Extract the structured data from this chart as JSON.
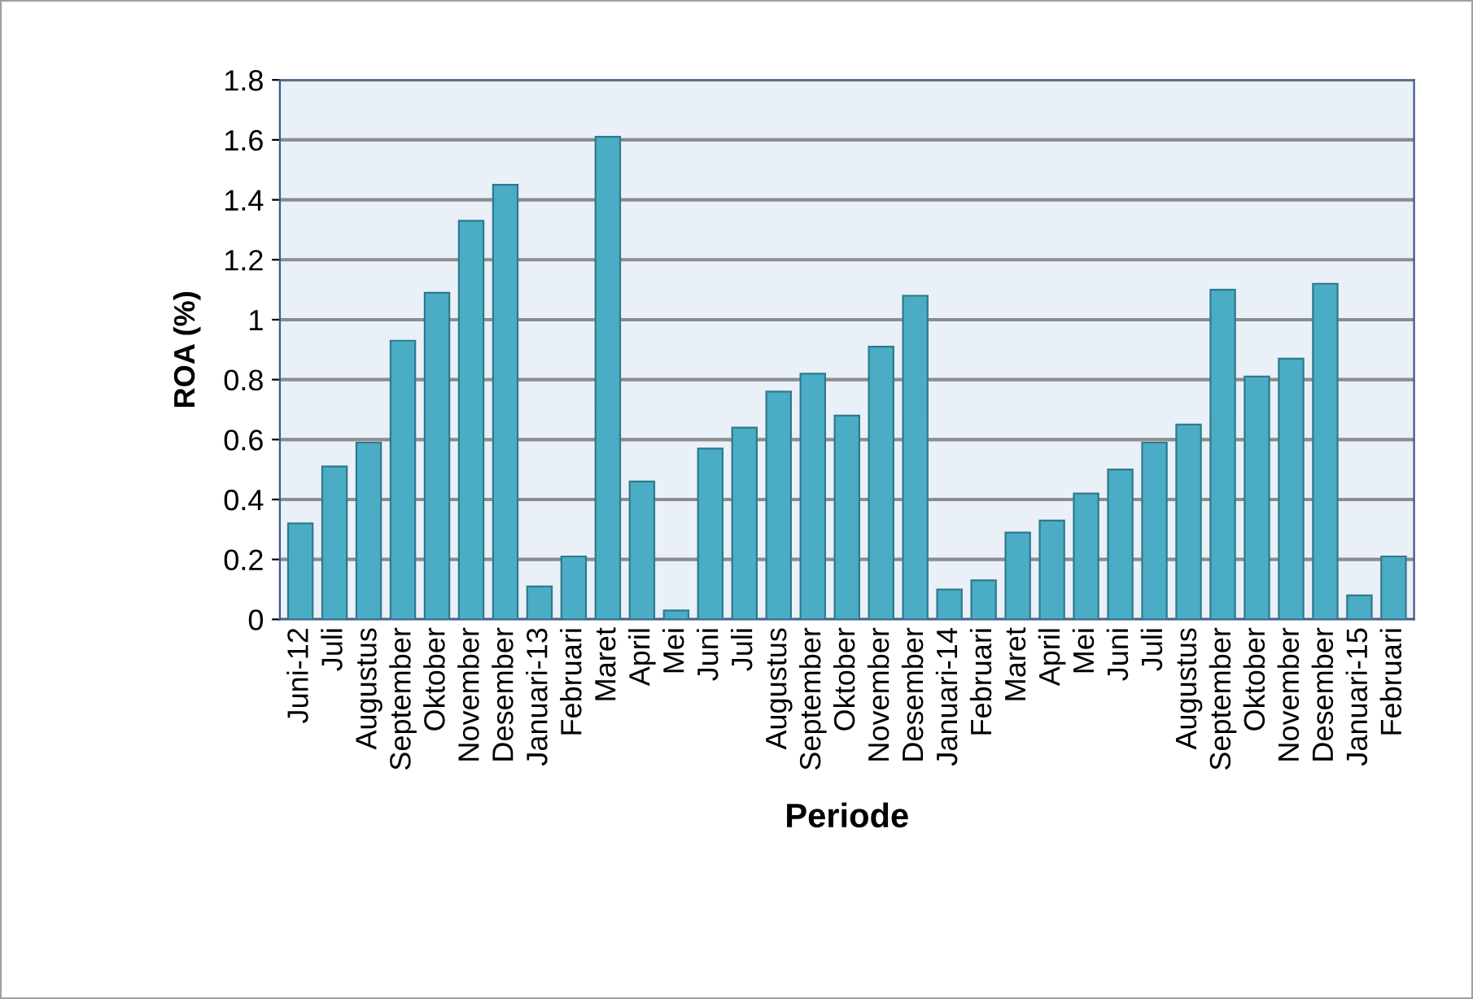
{
  "chart_data": {
    "type": "bar",
    "xlabel": "Periode",
    "ylabel": "ROA (%)",
    "categories": [
      "Juni-12",
      "Juli",
      "Augustus",
      "September",
      "Oktober",
      "November",
      "Desember",
      "Januari-13",
      "Februari",
      "Maret",
      "April",
      "Mei",
      "Juni",
      "Juli",
      "Augustus",
      "September",
      "Oktober",
      "November",
      "Desember",
      "Januari-14",
      "Februari",
      "Maret",
      "April",
      "Mei",
      "Juni",
      "Juli",
      "Augustus",
      "September",
      "Oktober",
      "November",
      "Desember",
      "Januari-15",
      "Februari"
    ],
    "values": [
      0.32,
      0.51,
      0.59,
      0.93,
      1.09,
      1.33,
      1.45,
      0.11,
      0.21,
      1.61,
      0.46,
      0.03,
      0.57,
      0.64,
      0.76,
      0.82,
      0.68,
      0.91,
      1.08,
      0.1,
      0.13,
      0.29,
      0.33,
      0.42,
      0.5,
      0.59,
      0.65,
      1.1,
      0.81,
      0.87,
      1.12,
      0.08,
      0.21
    ],
    "color": "#4bacc6",
    "ylim": [
      0,
      1.8
    ],
    "yticks": [
      0,
      0.2,
      0.4,
      0.6,
      0.8,
      1,
      1.2,
      1.4,
      1.6,
      1.8
    ],
    "grid": "y",
    "legend": false
  }
}
